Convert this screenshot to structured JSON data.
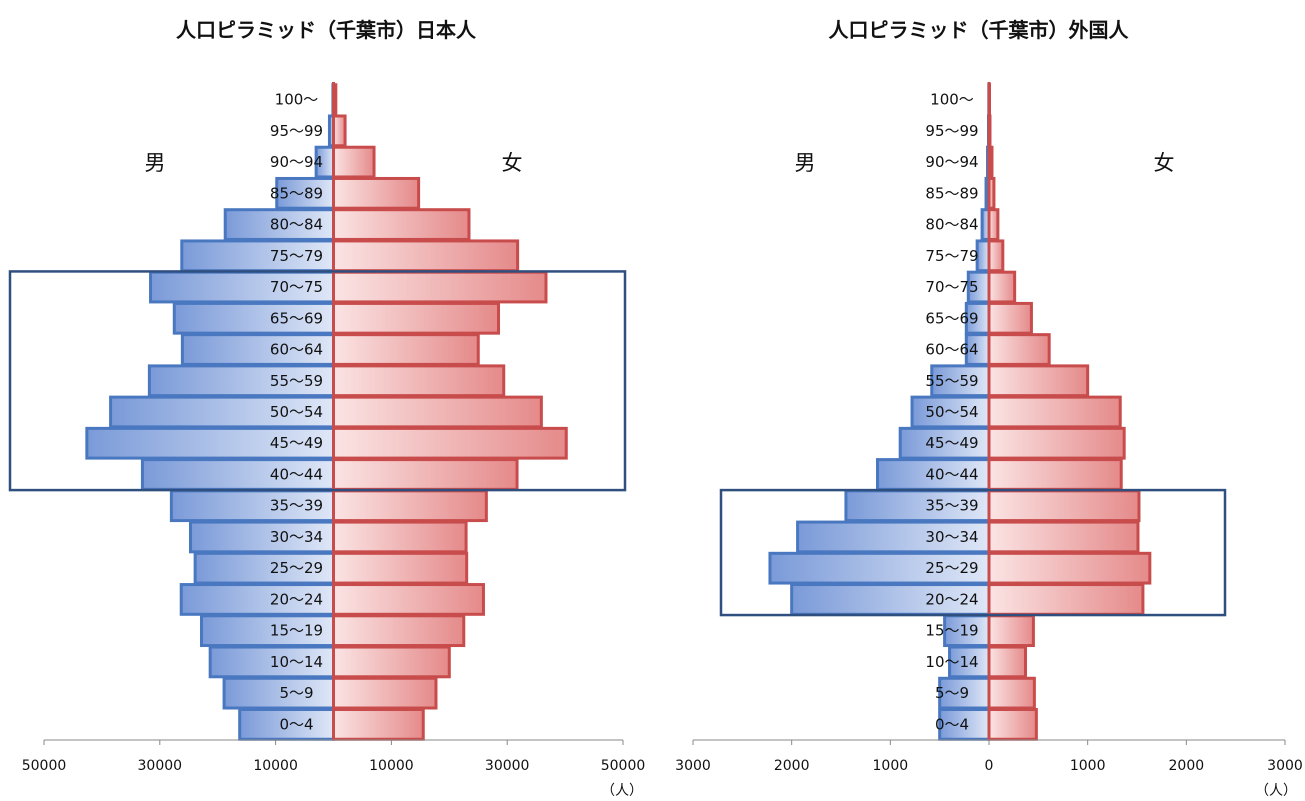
{
  "unit_label": "（人）",
  "male_label": "男",
  "female_label": "女",
  "colors": {
    "male_fill_dark": "#7a9ad8",
    "male_fill_light": "#dfe7f7",
    "male_stroke": "#4a78c0",
    "female_fill_dark": "#e58a8a",
    "female_fill_light": "#fbe4e4",
    "female_stroke": "#c84c4c",
    "highlight_box": "#2f4f7f",
    "axis": "#888888"
  },
  "chart_data": [
    {
      "type": "bar",
      "orientation": "population-pyramid",
      "title": "人口ピラミッド（千葉市）日本人",
      "categories": [
        "0～4",
        "5～9",
        "10～14",
        "15～19",
        "20～24",
        "25～29",
        "30～34",
        "35～39",
        "40～44",
        "45～49",
        "50～54",
        "55～59",
        "60～64",
        "65～69",
        "70～75",
        "75～79",
        "80～84",
        "85～89",
        "90～94",
        "95～99",
        "100～"
      ],
      "series": [
        {
          "name": "男",
          "values": [
            16200,
            18900,
            21300,
            22800,
            26300,
            23900,
            24700,
            28000,
            33000,
            42600,
            38500,
            31800,
            26100,
            27500,
            31600,
            26200,
            18700,
            9800,
            3000,
            700,
            100
          ]
        },
        {
          "name": "女",
          "values": [
            15500,
            17700,
            20000,
            22500,
            25900,
            23000,
            22900,
            26400,
            31700,
            40200,
            35900,
            29400,
            25000,
            28500,
            36700,
            31800,
            23400,
            14700,
            7000,
            2000,
            400
          ]
        }
      ],
      "xlim": [
        -50000,
        50000
      ],
      "tick_labels": [
        "50000",
        "30000",
        "10000",
        "10000",
        "30000",
        "50000"
      ],
      "highlight_range": [
        "40～44",
        "70～75"
      ]
    },
    {
      "type": "bar",
      "orientation": "population-pyramid",
      "title": "人口ピラミッド（千葉市）外国人",
      "categories": [
        "0～4",
        "5～9",
        "10～14",
        "15～19",
        "20～24",
        "25～29",
        "30～34",
        "35～39",
        "40～44",
        "45～49",
        "50～54",
        "55～59",
        "60～64",
        "65～69",
        "70～75",
        "75～79",
        "80～84",
        "85～89",
        "90～94",
        "95～99",
        "100～"
      ],
      "series": [
        {
          "name": "男",
          "values": [
            500,
            500,
            400,
            450,
            2000,
            2220,
            1940,
            1450,
            1130,
            900,
            780,
            580,
            230,
            230,
            210,
            120,
            70,
            30,
            15,
            5,
            2
          ]
        },
        {
          "name": "女",
          "values": [
            480,
            460,
            370,
            450,
            1560,
            1630,
            1510,
            1520,
            1340,
            1370,
            1330,
            1000,
            610,
            430,
            260,
            140,
            90,
            50,
            30,
            10,
            5
          ]
        }
      ],
      "xlim": [
        -3000,
        3000
      ],
      "tick_labels": [
        "3000",
        "2000",
        "1000",
        "0",
        "1000",
        "2000",
        "3000"
      ],
      "highlight_range": [
        "20～24",
        "35～39"
      ]
    }
  ]
}
